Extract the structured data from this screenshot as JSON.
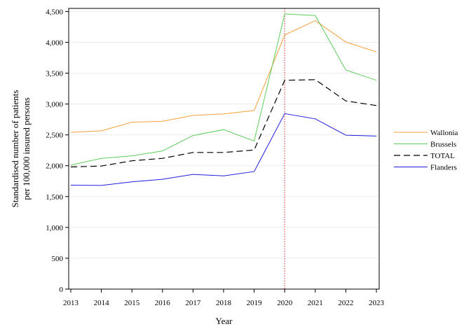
{
  "chart_data": {
    "type": "line",
    "xlabel": "Year",
    "ylabel_lines": [
      "Standardised number of patients",
      "per 100,000 insured persons"
    ],
    "x": [
      2013,
      2014,
      2015,
      2016,
      2017,
      2018,
      2019,
      2020,
      2021,
      2022,
      2023
    ],
    "x_tick_labels": [
      "2013",
      "2014",
      "2015",
      "2016",
      "2017",
      "2018",
      "2019",
      "2020",
      "2021",
      "2022",
      "2023"
    ],
    "ylim": [
      0,
      4550
    ],
    "y_ticks": [
      0,
      500,
      1000,
      1500,
      2000,
      2500,
      3000,
      3500,
      4000,
      4500
    ],
    "y_tick_labels": [
      "0",
      "500",
      "1,000",
      "1,500",
      "2,000",
      "2,500",
      "3,000",
      "3,500",
      "4,000",
      "4,500"
    ],
    "grid": "horizontal",
    "reference_line_x": 2020,
    "reference_line_color": "#d9534f",
    "legend_position": "right",
    "series": [
      {
        "name": "Wallonia",
        "color": "#f5a03a",
        "dash": "solid",
        "values": [
          2540,
          2565,
          2705,
          2720,
          2815,
          2840,
          2895,
          4120,
          4350,
          4005,
          3845
        ]
      },
      {
        "name": "Brussels",
        "color": "#5dcc5d",
        "dash": "solid",
        "values": [
          2010,
          2120,
          2160,
          2240,
          2490,
          2585,
          2400,
          4460,
          4435,
          3550,
          3385
        ]
      },
      {
        "name": "TOTAL",
        "color": "#000000",
        "dash": "dashed",
        "values": [
          1980,
          1995,
          2080,
          2120,
          2215,
          2215,
          2255,
          3385,
          3395,
          3050,
          2975
        ]
      },
      {
        "name": "Flanders",
        "color": "#1f1fe0",
        "dash": "solid",
        "values": [
          1685,
          1680,
          1740,
          1780,
          1860,
          1835,
          1905,
          2845,
          2760,
          2495,
          2480
        ]
      }
    ]
  }
}
